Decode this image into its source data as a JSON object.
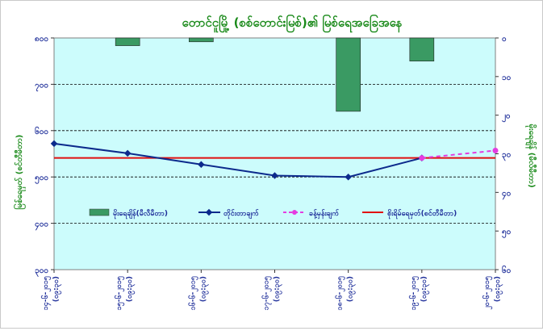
{
  "chart_data": {
    "type": "bar+line",
    "title": "တောင်ငူမြို့ (စစ်တောင်းမြစ်)၏ မြစ်ရေအခြေအနေ",
    "ylabel_left": "မြစ်ရေမှတ် (စင်တီမီတာ)",
    "ylabel_right": "မိုးရေချိန် (မီလီမီတာ)",
    "y_left_range": [
      300,
      800
    ],
    "y_left_ticks": [
      "၃၀၀",
      "၄၀၀",
      "၅၀၀",
      "၆၀၀",
      "၇၀၀",
      "၈၀၀"
    ],
    "y_left_values": [
      300,
      400,
      500,
      600,
      700,
      800
    ],
    "y_right_range": [
      0,
      60
    ],
    "y_right_inverted": true,
    "y_right_ticks": [
      "၀",
      "၁၀",
      "၂၀",
      "၃၀",
      "၄၀",
      "၅၀",
      "၆၀"
    ],
    "y_right_values": [
      0,
      10,
      20,
      30,
      40,
      50,
      60
    ],
    "x_ticks": [
      {
        "date": "၁၄-၆-၂၀၁၅",
        "time": "(၀၉:၃၀)"
      },
      {
        "date": "၁၅-၆-၂၀၁၅",
        "time": "(၀၉:၃၀)"
      },
      {
        "date": "၁၆-၆-၂၀၁၅",
        "time": "(၀၉:၃၀)"
      },
      {
        "date": "၁၇-၆-၂၀၁၅",
        "time": "(၀၉:၃၀)"
      },
      {
        "date": "၁၈-၆-၂၀၁၅",
        "time": "(၀၉:၃၀)"
      },
      {
        "date": "၁၉-၆-၂၀၁၅",
        "time": "(၀၉:၃၀)"
      },
      {
        "date": "၂၀-၆-၂၀၁၅",
        "time": "(၀၉:၃၀)"
      }
    ],
    "grid": true,
    "legend_placement": "center",
    "series": [
      {
        "name": "မိုးရေချိန်(မီလီမီတာ)",
        "kind": "bar",
        "axis": "right",
        "color": "#3a9a63",
        "values": [
          null,
          2,
          1,
          null,
          19,
          6,
          null
        ]
      },
      {
        "name": "တိုင်းတာချက်",
        "kind": "line",
        "axis": "left",
        "color": "#0c2a8c",
        "values": [
          572,
          551,
          527,
          503,
          500,
          541,
          null
        ]
      },
      {
        "name": "ခန့်မှန်းချက်",
        "kind": "line-dashed",
        "axis": "left",
        "color": "#e43ce0",
        "values": [
          null,
          null,
          null,
          null,
          null,
          541,
          557
        ]
      },
      {
        "name": "စိုးရိမ်ရေမှတ်(စင်တီမီတာ)",
        "kind": "hline",
        "axis": "left",
        "color": "#e01010",
        "value": 541
      }
    ]
  },
  "colors": {
    "plot_bg": "#ccfcfc",
    "title": "#1a8a1a",
    "axis_text": "#1f2f9a",
    "right_axis_text": "#1a8a1a"
  }
}
